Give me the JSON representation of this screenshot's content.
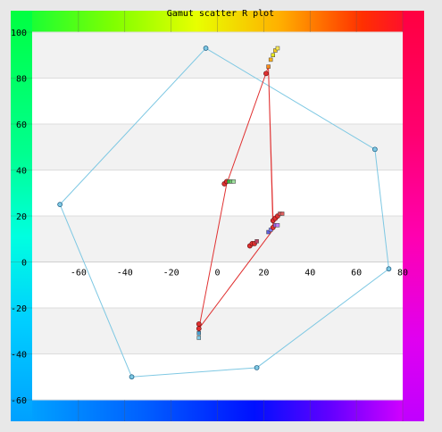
{
  "chart_data": {
    "type": "scatter",
    "title": "Gamut scatter R plot",
    "xlim": [
      -80,
      80
    ],
    "ylim": [
      -60,
      100
    ],
    "x_ticks": [
      -60,
      -40,
      -20,
      0,
      20,
      40,
      60,
      80
    ],
    "y_ticks": [
      -60,
      -40,
      -20,
      0,
      20,
      40,
      60,
      80,
      100
    ],
    "grid": "horizontal bands",
    "gamut_polygon": {
      "color": "#7ec8e3",
      "points": [
        [
          -5,
          93
        ],
        [
          68,
          49
        ],
        [
          74,
          -3
        ],
        [
          17,
          -46
        ],
        [
          -37,
          -50
        ],
        [
          -68,
          25
        ]
      ]
    },
    "red_path": {
      "color": "#e03030",
      "points": [
        [
          22,
          85
        ],
        [
          24,
          14
        ],
        [
          -8,
          -29
        ],
        [
          4,
          34
        ],
        [
          22,
          85
        ],
        [
          24,
          19
        ]
      ]
    },
    "clusters": [
      {
        "points": [
          [
            21,
            82
          ],
          [
            22,
            85
          ],
          [
            23,
            88
          ],
          [
            24,
            90
          ],
          [
            25,
            92
          ],
          [
            26,
            93
          ]
        ],
        "colors": [
          "#e03030",
          "#ff8c1a",
          "#ffb31a",
          "#e6e61a",
          "#ffd21a",
          "#ffee55"
        ]
      },
      {
        "points": [
          [
            3,
            34
          ],
          [
            4,
            35
          ],
          [
            5,
            35
          ],
          [
            6,
            35
          ],
          [
            7,
            35
          ]
        ],
        "colors": [
          "#e03030",
          "#e03030",
          "#3ac03a",
          "#6ed06e",
          "#a0e0a0"
        ]
      },
      {
        "points": [
          [
            24,
            18
          ],
          [
            25,
            19
          ],
          [
            26,
            20
          ],
          [
            27,
            21
          ],
          [
            28,
            21
          ]
        ],
        "colors": [
          "#e03030",
          "#e03030",
          "#e03030",
          "#e05050",
          "#e06060"
        ]
      },
      {
        "points": [
          [
            14,
            7
          ],
          [
            15,
            8
          ],
          [
            16,
            8
          ],
          [
            17,
            9
          ]
        ],
        "colors": [
          "#e03030",
          "#e03030",
          "#e03030",
          "#c04060"
        ]
      },
      {
        "points": [
          [
            22,
            13
          ],
          [
            23,
            14
          ],
          [
            24,
            15
          ],
          [
            25,
            16
          ],
          [
            26,
            16
          ]
        ],
        "colors": [
          "#6060e0",
          "#8080ff",
          "#e03030",
          "#a060e0",
          "#c080ff"
        ]
      },
      {
        "points": [
          [
            -8,
            -27
          ],
          [
            -8,
            -29
          ],
          [
            -8,
            -31
          ],
          [
            -8,
            -33
          ]
        ],
        "colors": [
          "#e03030",
          "#e03030",
          "#4aa0d0",
          "#7ec8e3"
        ]
      }
    ]
  }
}
